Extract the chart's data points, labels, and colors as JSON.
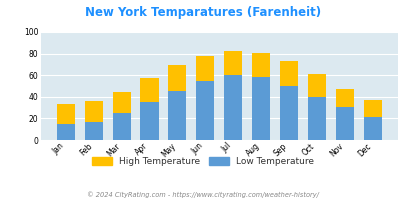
{
  "title": "New York Temparatures (Farenheit)",
  "months": [
    "Jan",
    "Feb",
    "Mar",
    "Apr",
    "May",
    "Jun",
    "Jul",
    "Aug",
    "Sep",
    "Oct",
    "Nov",
    "Dec"
  ],
  "low_temps": [
    15,
    17,
    25,
    35,
    45,
    55,
    60,
    58,
    50,
    40,
    31,
    21
  ],
  "high_temps": [
    33,
    36,
    44,
    57,
    69,
    78,
    82,
    81,
    73,
    61,
    47,
    37
  ],
  "low_color": "#5b9bd5",
  "high_color": "#ffc000",
  "bg_color": "#dce9f0",
  "ylim": [
    0,
    100
  ],
  "yticks": [
    0,
    20,
    40,
    60,
    80,
    100
  ],
  "title_color": "#1e90ff",
  "footer_text": "© 2024 CityRating.com - https://www.cityrating.com/weather-history/",
  "footer_color": "#888888",
  "legend_label_high": "High Temperature",
  "legend_label_low": "Low Temperature",
  "legend_text_color": "#333333"
}
